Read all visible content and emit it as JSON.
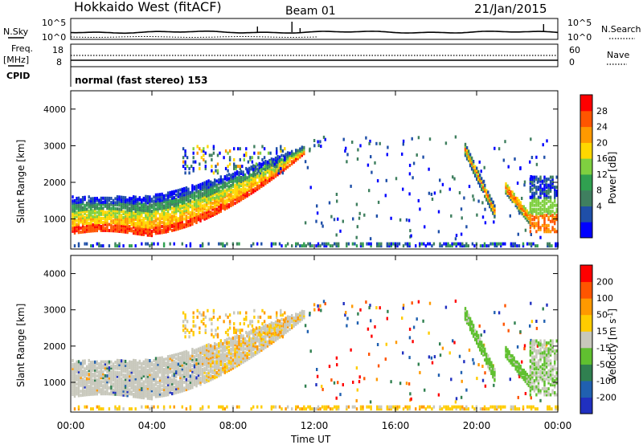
{
  "header": {
    "station": "Hokkaido West (fitACF)",
    "beam": "Beam 01",
    "date": "21/Jan/2015"
  },
  "strip": {
    "nsky_label": "N.Sky",
    "nsearch_label": "N.Search",
    "log_top": "10^5",
    "log_bottom": "10^0",
    "freq_label": "Freq.",
    "freq_unit": "[MHz]",
    "freq_ticks": [
      "18",
      "8"
    ],
    "nave_label": "Nave",
    "nave_ticks": [
      "60",
      "0"
    ],
    "cpid_label": "CPID",
    "cpid_text": "normal (fast stereo) 153"
  },
  "colors": {
    "power_scale": [
      "#0000ff",
      "#1f4fa8",
      "#3f7f5f",
      "#30a050",
      "#7fd040",
      "#ffd700",
      "#ff9900",
      "#ff5500",
      "#ff0000"
    ],
    "velocity_scale": [
      "#2030c0",
      "#2060b0",
      "#308050",
      "#60c030",
      "#c8c8bc",
      "#ffcc00",
      "#ff9900",
      "#ff5500",
      "#ff0000"
    ]
  },
  "chart_data": [
    {
      "type": "heatmap",
      "name": "power",
      "xlabel": "",
      "ylabel": "Slant Range [km]",
      "colorbar_label": "Power [dB]",
      "colorbar_ticks": [
        "28",
        "24",
        "20",
        "16",
        "12",
        "8",
        "4"
      ],
      "y_ticks": [
        "4000",
        "3000",
        "2000",
        "1000"
      ],
      "ylim": [
        180,
        4500
      ],
      "xlim_hours": [
        0,
        24
      ]
    },
    {
      "type": "heatmap",
      "name": "velocity",
      "xlabel": "Time UT",
      "ylabel": "Slant Range [km]",
      "colorbar_label": "Velocity [m s^-1]",
      "colorbar_ticks": [
        "200",
        "100",
        "50",
        "15",
        "-15",
        "-50",
        "-100",
        "-200"
      ],
      "y_ticks": [
        "4000",
        "3000",
        "2000",
        "1000"
      ],
      "x_ticks": [
        "00:00",
        "04:00",
        "08:00",
        "12:00",
        "16:00",
        "20:00",
        "00:00"
      ],
      "ylim": [
        180,
        4500
      ],
      "xlim_hours": [
        0,
        24
      ]
    }
  ]
}
